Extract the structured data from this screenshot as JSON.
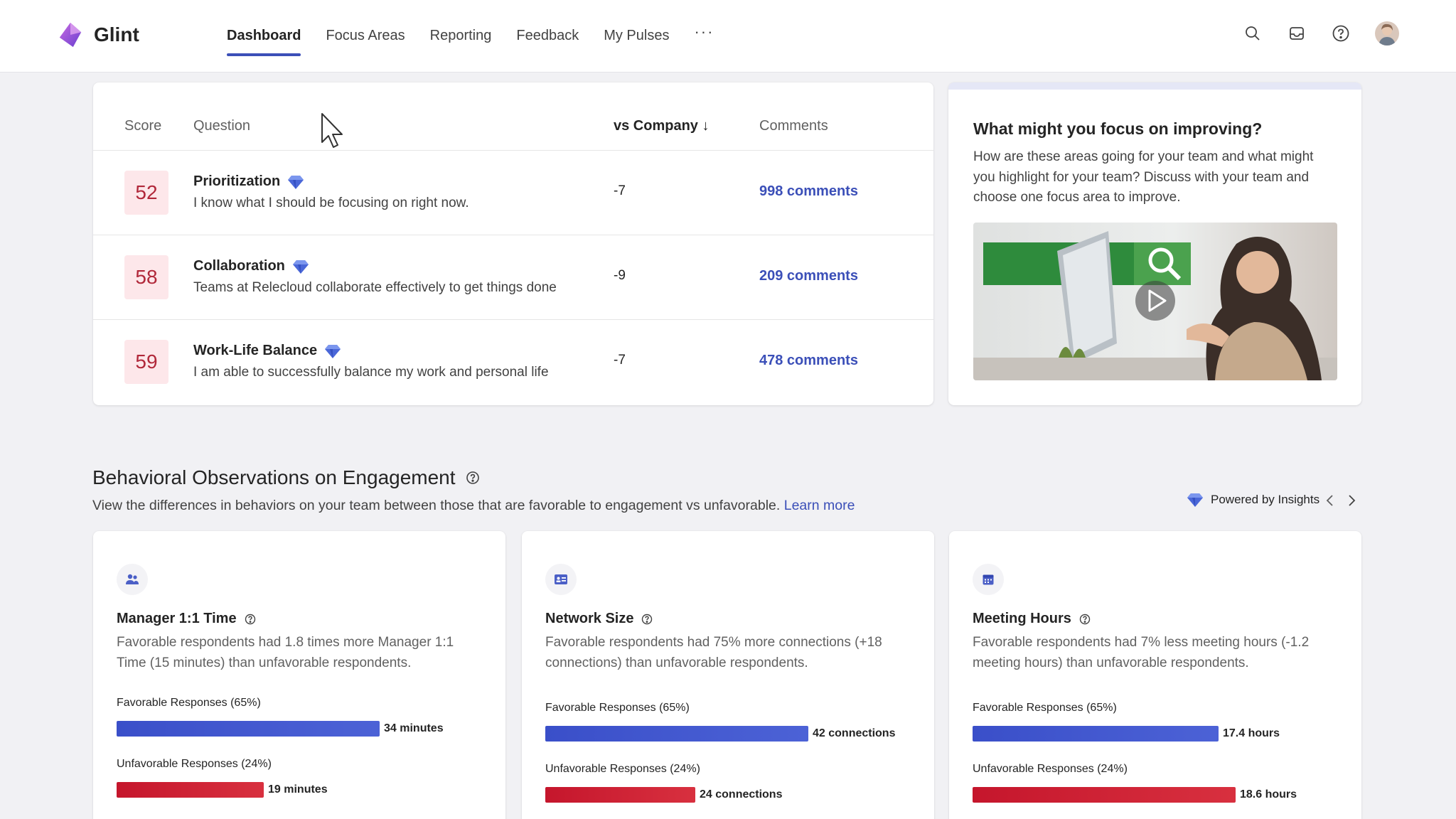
{
  "app": {
    "name": "Glint"
  },
  "nav": {
    "items": [
      {
        "label": "Dashboard",
        "active": true
      },
      {
        "label": "Focus Areas",
        "active": false
      },
      {
        "label": "Reporting",
        "active": false
      },
      {
        "label": "Feedback",
        "active": false
      },
      {
        "label": "My Pulses",
        "active": false
      }
    ],
    "more": "···"
  },
  "top_icons": [
    "search-icon",
    "inbox-icon",
    "help-icon",
    "user-avatar"
  ],
  "questions": {
    "headers": {
      "score": "Score",
      "question": "Question",
      "vs_company": "vs Company ↓",
      "comments": "Comments"
    },
    "rows": [
      {
        "score": "52",
        "title": "Prioritization",
        "description": "I know what I should be focusing on right now.",
        "vs_company": "-7",
        "comments": "998 comments"
      },
      {
        "score": "58",
        "title": "Collaboration",
        "description": "Teams at Relecloud collaborate effectively to get things done",
        "vs_company": "-9",
        "comments": "209 comments"
      },
      {
        "score": "59",
        "title": "Work-Life Balance",
        "description": "I am able to successfully balance my work and personal life",
        "vs_company": "-7",
        "comments": "478 comments"
      }
    ]
  },
  "focus": {
    "title": "What might you focus on improving?",
    "body": "How are these areas going for your team and what might you highlight for your team? Discuss with your team and choose one focus area to improve."
  },
  "behavioral": {
    "title": "Behavioral Observations on Engagement",
    "subtitle": "View the differences in behaviors on your team between those that are favorable to engagement vs unfavorable.",
    "learn_more": "Learn more",
    "powered_by": "Powered by Insights",
    "cards": [
      {
        "icon": "people-icon",
        "title": "Manager 1:1 Time",
        "description": "Favorable respondents had 1.8 times more Manager 1:1 Time (15 minutes) than unfavorable respondents.",
        "favorable_label": "Favorable Responses (65%)",
        "favorable_value": "34 minutes",
        "favorable_amount": 34,
        "unfavorable_label": "Unfavorable Responses (24%)",
        "unfavorable_value": "19 minutes",
        "unfavorable_amount": 19
      },
      {
        "icon": "contact-card-icon",
        "title": "Network Size",
        "description": "Favorable respondents had 75% more connections (+18 connections) than unfavorable respondents.",
        "favorable_label": "Favorable Responses (65%)",
        "favorable_value": "42 connections",
        "favorable_amount": 42,
        "unfavorable_label": "Unfavorable Responses (24%)",
        "unfavorable_value": "24 connections",
        "unfavorable_amount": 24
      },
      {
        "icon": "calendar-icon",
        "title": "Meeting Hours",
        "description": "Favorable respondents had 7% less meeting hours (-1.2 meeting hours) than unfavorable respondents.",
        "favorable_label": "Favorable Responses (65%)",
        "favorable_value": "17.4 hours",
        "favorable_amount": 17.4,
        "unfavorable_label": "Unfavorable Responses (24%)",
        "unfavorable_value": "18.6 hours",
        "unfavorable_amount": 18.6
      }
    ]
  },
  "colors": {
    "accent": "#3b4fb8",
    "favorable": "#3a4fc9",
    "unfavorable": "#c5162c",
    "score_bg": "#fde7ea",
    "score_text": "#b1283a"
  }
}
